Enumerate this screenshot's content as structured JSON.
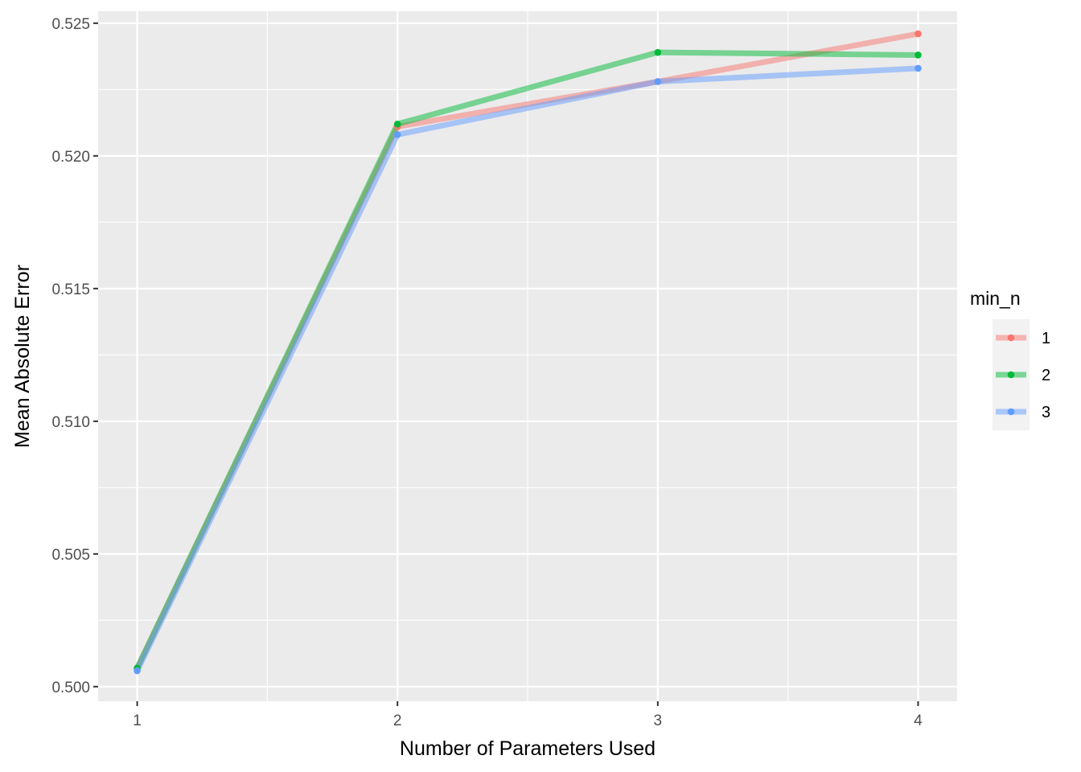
{
  "chart_data": {
    "type": "line",
    "xlabel": "Number of Parameters Used",
    "ylabel": "Mean Absolute Error",
    "x": [
      1,
      2,
      3,
      4
    ],
    "x_ticks": [
      "1",
      "2",
      "3",
      "4"
    ],
    "xlim": [
      0.85,
      4.15
    ],
    "ylim": [
      0.49945,
      0.52545
    ],
    "y_ticks": [
      0.5,
      0.505,
      0.51,
      0.515,
      0.52,
      0.525
    ],
    "y_tick_labels": [
      "0.500",
      "0.505",
      "0.510",
      "0.515",
      "0.520",
      "0.525"
    ],
    "grid": true,
    "legend_position": "right",
    "legend_title": "min_n",
    "series": [
      {
        "name": "1",
        "values": [
          0.5007,
          0.5211,
          0.5228,
          0.5246
        ],
        "color": "#F8766D"
      },
      {
        "name": "2",
        "values": [
          0.5007,
          0.5212,
          0.5239,
          0.5238
        ],
        "color": "#00BA38"
      },
      {
        "name": "3",
        "values": [
          0.5006,
          0.5208,
          0.5228,
          0.5233
        ],
        "color": "#619CFF"
      }
    ],
    "colors": {
      "panel_background": "#EBEBEB",
      "grid": "#FFFFFF"
    }
  }
}
